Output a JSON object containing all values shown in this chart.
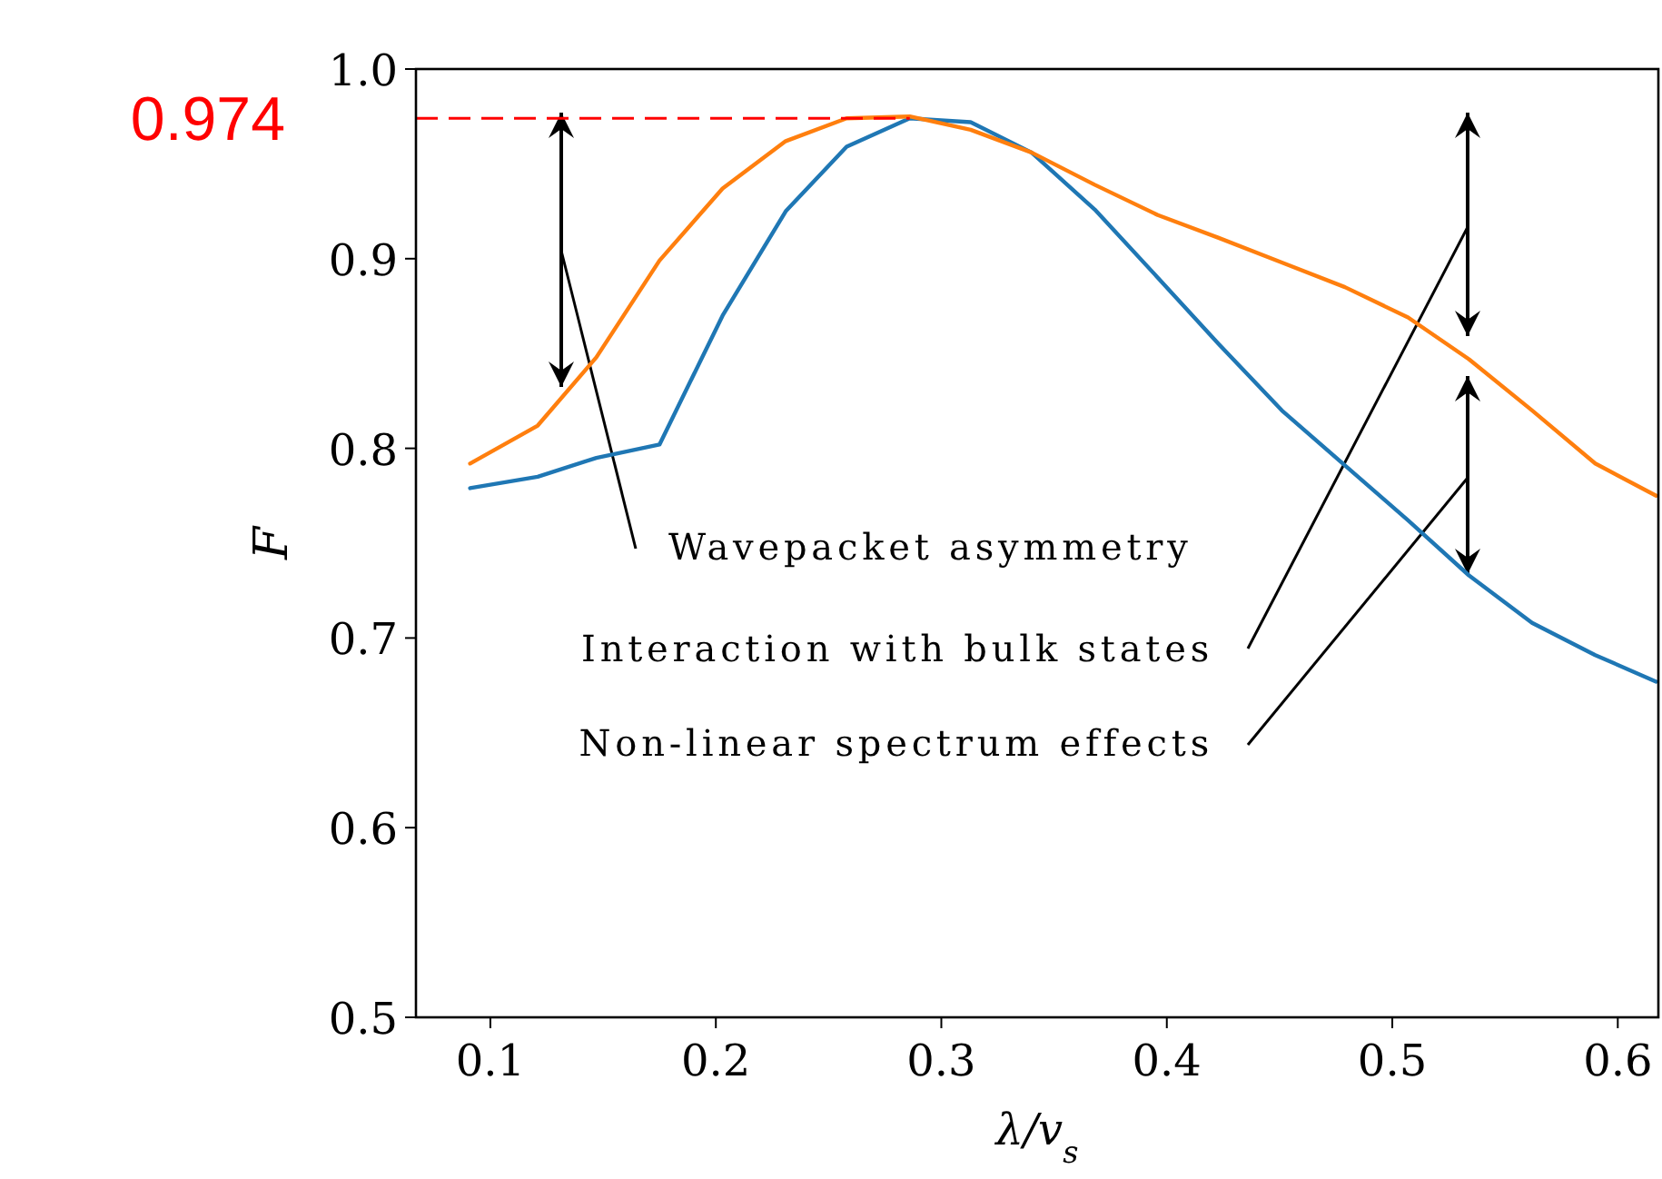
{
  "chart_data": {
    "type": "line",
    "xlabel": "λ/v$_{s}$",
    "ylabel": "F",
    "x": [
      0.091,
      0.121,
      0.147,
      0.175,
      0.203,
      0.231,
      0.258,
      0.286,
      0.313,
      0.34,
      0.368,
      0.396,
      0.423,
      0.451,
      0.479,
      0.507,
      0.534,
      0.562,
      0.59,
      0.617
    ],
    "series": [
      {
        "color": "#1f77b4",
        "values": [
          0.779,
          0.785,
          0.795,
          0.802,
          0.87,
          0.925,
          0.959,
          0.974,
          0.972,
          0.956,
          0.926,
          0.89,
          0.855,
          0.82,
          0.791,
          0.762,
          0.733,
          0.708,
          0.691,
          0.677
        ]
      },
      {
        "color": "#ff7f0e",
        "values": [
          0.792,
          0.812,
          0.848,
          0.899,
          0.937,
          0.962,
          0.974,
          0.975,
          0.968,
          0.956,
          0.939,
          0.923,
          0.911,
          0.898,
          0.885,
          0.869,
          0.847,
          0.82,
          0.792,
          0.775
        ]
      }
    ],
    "xlim": [
      0.067,
      0.618
    ],
    "ylim": [
      0.5,
      1.0
    ],
    "xticks": [
      0.1,
      0.2,
      0.3,
      0.4,
      0.5,
      0.6
    ],
    "yticks": [
      {
        "value": 0.5,
        "label": "0.5"
      },
      {
        "value": 0.6,
        "label": "0.6"
      },
      {
        "value": 0.7,
        "label": "0.7"
      },
      {
        "value": 0.8,
        "label": "0.8"
      },
      {
        "value": 0.9,
        "label": "0.9"
      },
      {
        "value": 1.0,
        "label": "1.0"
      }
    ],
    "ref_lines": [
      {
        "axis": "y",
        "value": 0.974,
        "label": "0.974",
        "color": "#ff0000",
        "line_style": "dashed"
      }
    ],
    "annotations": [
      "Wavepacket asymmetry",
      "Interaction with bulk states",
      "Non-linear spectrum effects"
    ],
    "grid": false,
    "marker": "none",
    "line_style": "solid"
  }
}
